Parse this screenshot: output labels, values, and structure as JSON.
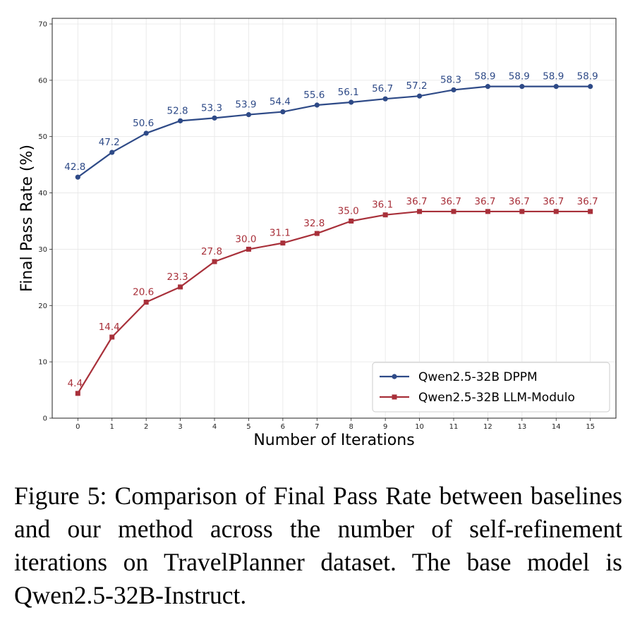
{
  "chart_data": {
    "type": "line",
    "xlabel": "Number of Iterations",
    "ylabel": "Final Pass Rate (%)",
    "x": [
      0,
      1,
      2,
      3,
      4,
      5,
      6,
      7,
      8,
      9,
      10,
      11,
      12,
      13,
      14,
      15
    ],
    "x_ticks": [
      "0",
      "1",
      "2",
      "3",
      "4",
      "5",
      "6",
      "7",
      "8",
      "9",
      "10",
      "11",
      "12",
      "13",
      "14",
      "15"
    ],
    "y_ticks": [
      "0",
      "10",
      "20",
      "30",
      "40",
      "50",
      "60",
      "70"
    ],
    "ylim": [
      0,
      71
    ],
    "xlim": [
      -0.75,
      15.75
    ],
    "grid": true,
    "legend_position": "lower-right",
    "series": [
      {
        "name": "Qwen2.5-32B DPPM",
        "color": "#2e4a87",
        "marker": "circle",
        "values": [
          42.8,
          47.2,
          50.6,
          52.8,
          53.3,
          53.9,
          54.4,
          55.6,
          56.1,
          56.7,
          57.2,
          58.3,
          58.9,
          58.9,
          58.9,
          58.9
        ],
        "labels": [
          "42.8",
          "47.2",
          "50.6",
          "52.8",
          "53.3",
          "53.9",
          "54.4",
          "55.6",
          "56.1",
          "56.7",
          "57.2",
          "58.3",
          "58.9",
          "58.9",
          "58.9",
          "58.9"
        ]
      },
      {
        "name": "Qwen2.5-32B LLM-Modulo",
        "color": "#a8303a",
        "marker": "square",
        "values": [
          4.4,
          14.4,
          20.6,
          23.3,
          27.8,
          30.0,
          31.1,
          32.8,
          35.0,
          36.1,
          36.7,
          36.7,
          36.7,
          36.7,
          36.7,
          36.7
        ],
        "labels": [
          "4.4",
          "14.4",
          "20.6",
          "23.3",
          "27.8",
          "30.0",
          "31.1",
          "32.8",
          "35.0",
          "36.1",
          "36.7",
          "36.7",
          "36.7",
          "36.7",
          "36.7",
          "36.7"
        ]
      }
    ]
  },
  "caption": "Figure 5: Comparison of Final Pass Rate between baselines and our method across the number of self-refinement iterations on TravelPlanner dataset. The base model is Qwen2.5-32B-Instruct."
}
